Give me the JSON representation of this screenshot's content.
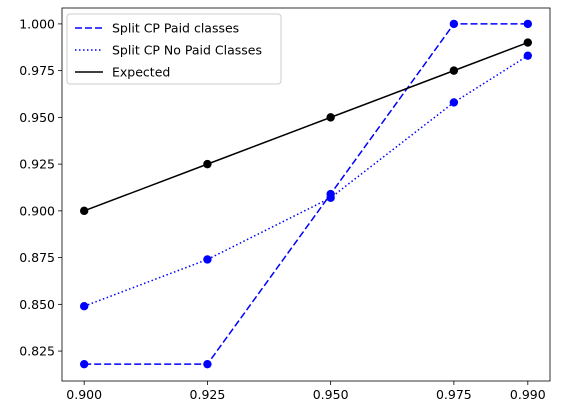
{
  "chart_data": {
    "type": "line",
    "x": [
      0.9,
      0.925,
      0.95,
      0.975,
      0.99
    ],
    "x_tick_labels": [
      "0.900",
      "0.925",
      "0.950",
      "0.975",
      "0.990"
    ],
    "y_ticks": [
      0.825,
      0.85,
      0.875,
      0.9,
      0.925,
      0.95,
      0.975,
      1.0
    ],
    "y_tick_labels": [
      "0.825",
      "0.850",
      "0.875",
      "0.900",
      "0.925",
      "0.950",
      "0.975",
      "1.000"
    ],
    "xlim": [
      0.8955,
      0.9945
    ],
    "ylim": [
      0.809,
      1.0085
    ],
    "grid": false,
    "legend_position": "upper-left",
    "series": [
      {
        "name": "Split CP Paid classes",
        "values": [
          0.818,
          0.818,
          0.909,
          1.0,
          1.0
        ],
        "color": "#0000ff",
        "line_style": "dashed",
        "marker": "circle"
      },
      {
        "name": "Split CP No Paid Classes",
        "values": [
          0.849,
          0.874,
          0.907,
          0.958,
          0.983
        ],
        "color": "#0000ff",
        "line_style": "dotted",
        "marker": "circle"
      },
      {
        "name": "Expected",
        "values": [
          0.9,
          0.925,
          0.95,
          0.975,
          0.99
        ],
        "color": "#000000",
        "line_style": "solid",
        "marker": "circle"
      }
    ]
  }
}
